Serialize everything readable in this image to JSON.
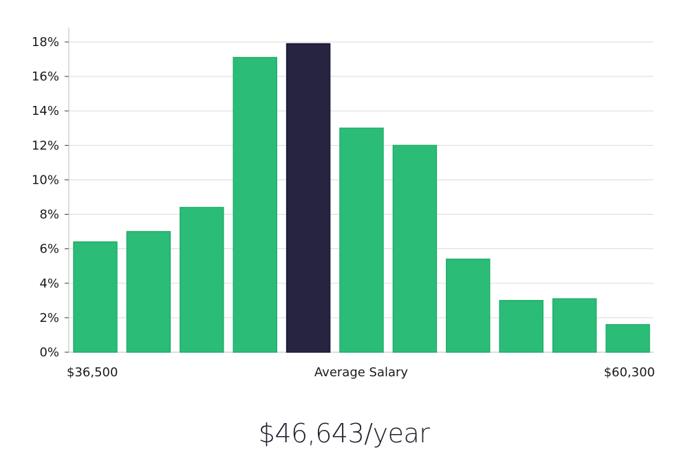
{
  "chart_data": {
    "type": "bar",
    "values": [
      6.4,
      7.0,
      8.4,
      17.1,
      17.9,
      13.0,
      12.0,
      5.4,
      3.0,
      3.1,
      1.6
    ],
    "highlight_index": 4,
    "y_ticks": [
      "0%",
      "2%",
      "4%",
      "6%",
      "8%",
      "10%",
      "12%",
      "14%",
      "16%",
      "18%"
    ],
    "ylim": [
      0,
      18
    ],
    "x_labels": {
      "left": "$36,500",
      "center": "Average Salary",
      "right": "$60,300"
    },
    "grid": true,
    "colors": {
      "bar": "#2bbd77",
      "bar_border": "#22ad6a",
      "highlight": "#27243f",
      "highlight_border": "#1b1838",
      "grid": "#d9d9d9",
      "axis": "#bbbbbb"
    }
  },
  "summary": {
    "salary_text": "$46,643/year"
  }
}
